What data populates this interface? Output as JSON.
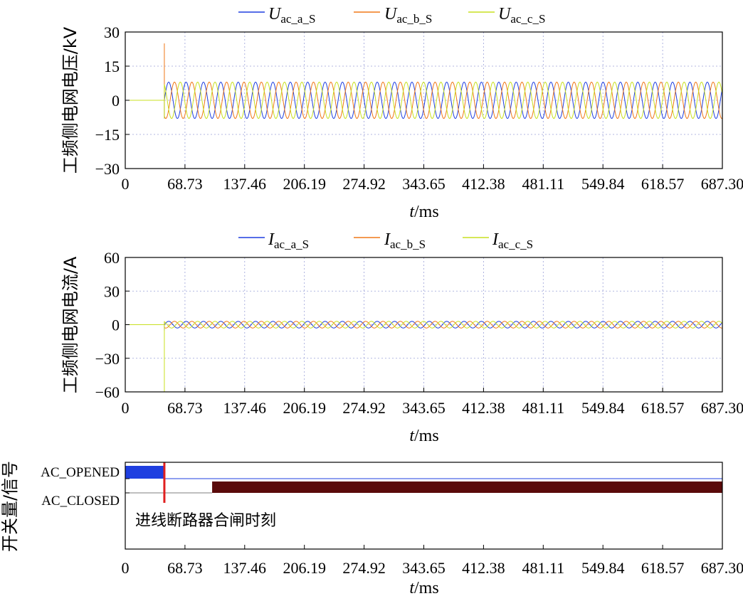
{
  "chart_data": [
    {
      "type": "line",
      "id": "voltage",
      "ylabel": "工频侧电网电压/kV",
      "xlabel_italic": "t",
      "xlabel_unit": "/ms",
      "xlim": [
        0,
        687.3
      ],
      "ylim": [
        -30,
        30
      ],
      "xticks": [
        "0",
        "68.73",
        "137.46",
        "206.19",
        "274.92",
        "343.65",
        "412.38",
        "481.11",
        "549.84",
        "618.57",
        "687.30"
      ],
      "yticks": [
        "30",
        "15",
        "0",
        "-15",
        "-30"
      ],
      "grid": true,
      "legend_position": "top",
      "series": [
        {
          "name_main": "U",
          "name_sub": "ac_a_S",
          "color": "#1f3fe0",
          "amplitude": 8,
          "phase_deg": 0,
          "start_ms": 45,
          "spike": -8
        },
        {
          "name_main": "U",
          "name_sub": "ac_b_S",
          "color": "#f07818",
          "amplitude": 8,
          "phase_deg": -120,
          "start_ms": 45,
          "spike": 25
        },
        {
          "name_main": "U",
          "name_sub": "ac_c_S",
          "color": "#c8e020",
          "amplitude": 8,
          "phase_deg": 120,
          "start_ms": 45,
          "spike": -8
        }
      ],
      "frequency_hz": 50
    },
    {
      "type": "line",
      "id": "current",
      "ylabel": "工频侧电网电流/A",
      "xlabel_italic": "t",
      "xlabel_unit": "/ms",
      "xlim": [
        0,
        687.3
      ],
      "ylim": [
        -60,
        60
      ],
      "xticks": [
        "0",
        "68.73",
        "137.46",
        "206.19",
        "274.92",
        "343.65",
        "412.38",
        "481.11",
        "549.84",
        "618.57",
        "687.30"
      ],
      "yticks": [
        "60",
        "30",
        "0",
        "-30",
        "-60"
      ],
      "grid": true,
      "legend_position": "top",
      "series": [
        {
          "name_main": "I",
          "name_sub": "ac_a_S",
          "color": "#1f3fe0",
          "amplitude": 3,
          "phase_deg": 0,
          "start_ms": 45,
          "spike": -5
        },
        {
          "name_main": "I",
          "name_sub": "ac_b_S",
          "color": "#f07818",
          "amplitude": 3,
          "phase_deg": -120,
          "start_ms": 45,
          "spike": 3
        },
        {
          "name_main": "I",
          "name_sub": "ac_c_S",
          "color": "#c8e020",
          "amplitude": 3,
          "phase_deg": 120,
          "start_ms": 45,
          "spike": -60
        }
      ],
      "frequency_hz": 50
    },
    {
      "type": "line",
      "id": "switch",
      "ylabel": "开关量/信号",
      "xlabel_italic": "t",
      "xlabel_unit": "/ms",
      "xlim": [
        0,
        687.3
      ],
      "xticks": [
        "0",
        "68.73",
        "137.46",
        "206.19",
        "274.92",
        "343.65",
        "412.38",
        "481.11",
        "549.84",
        "618.57",
        "687.30"
      ],
      "yticks": [
        "AC_OPENED",
        "AC_CLOSED"
      ],
      "grid": false,
      "opened_band": {
        "start_ms": 0,
        "end_ms": 45,
        "color": "#1f3fe0"
      },
      "closed_band": {
        "start_ms": 100,
        "end_ms": 687.3,
        "color": "#5a0a0a"
      },
      "event_line": {
        "x_ms": 45,
        "color": "#e02020"
      },
      "annotation": "进线断路器合闸时刻"
    }
  ]
}
